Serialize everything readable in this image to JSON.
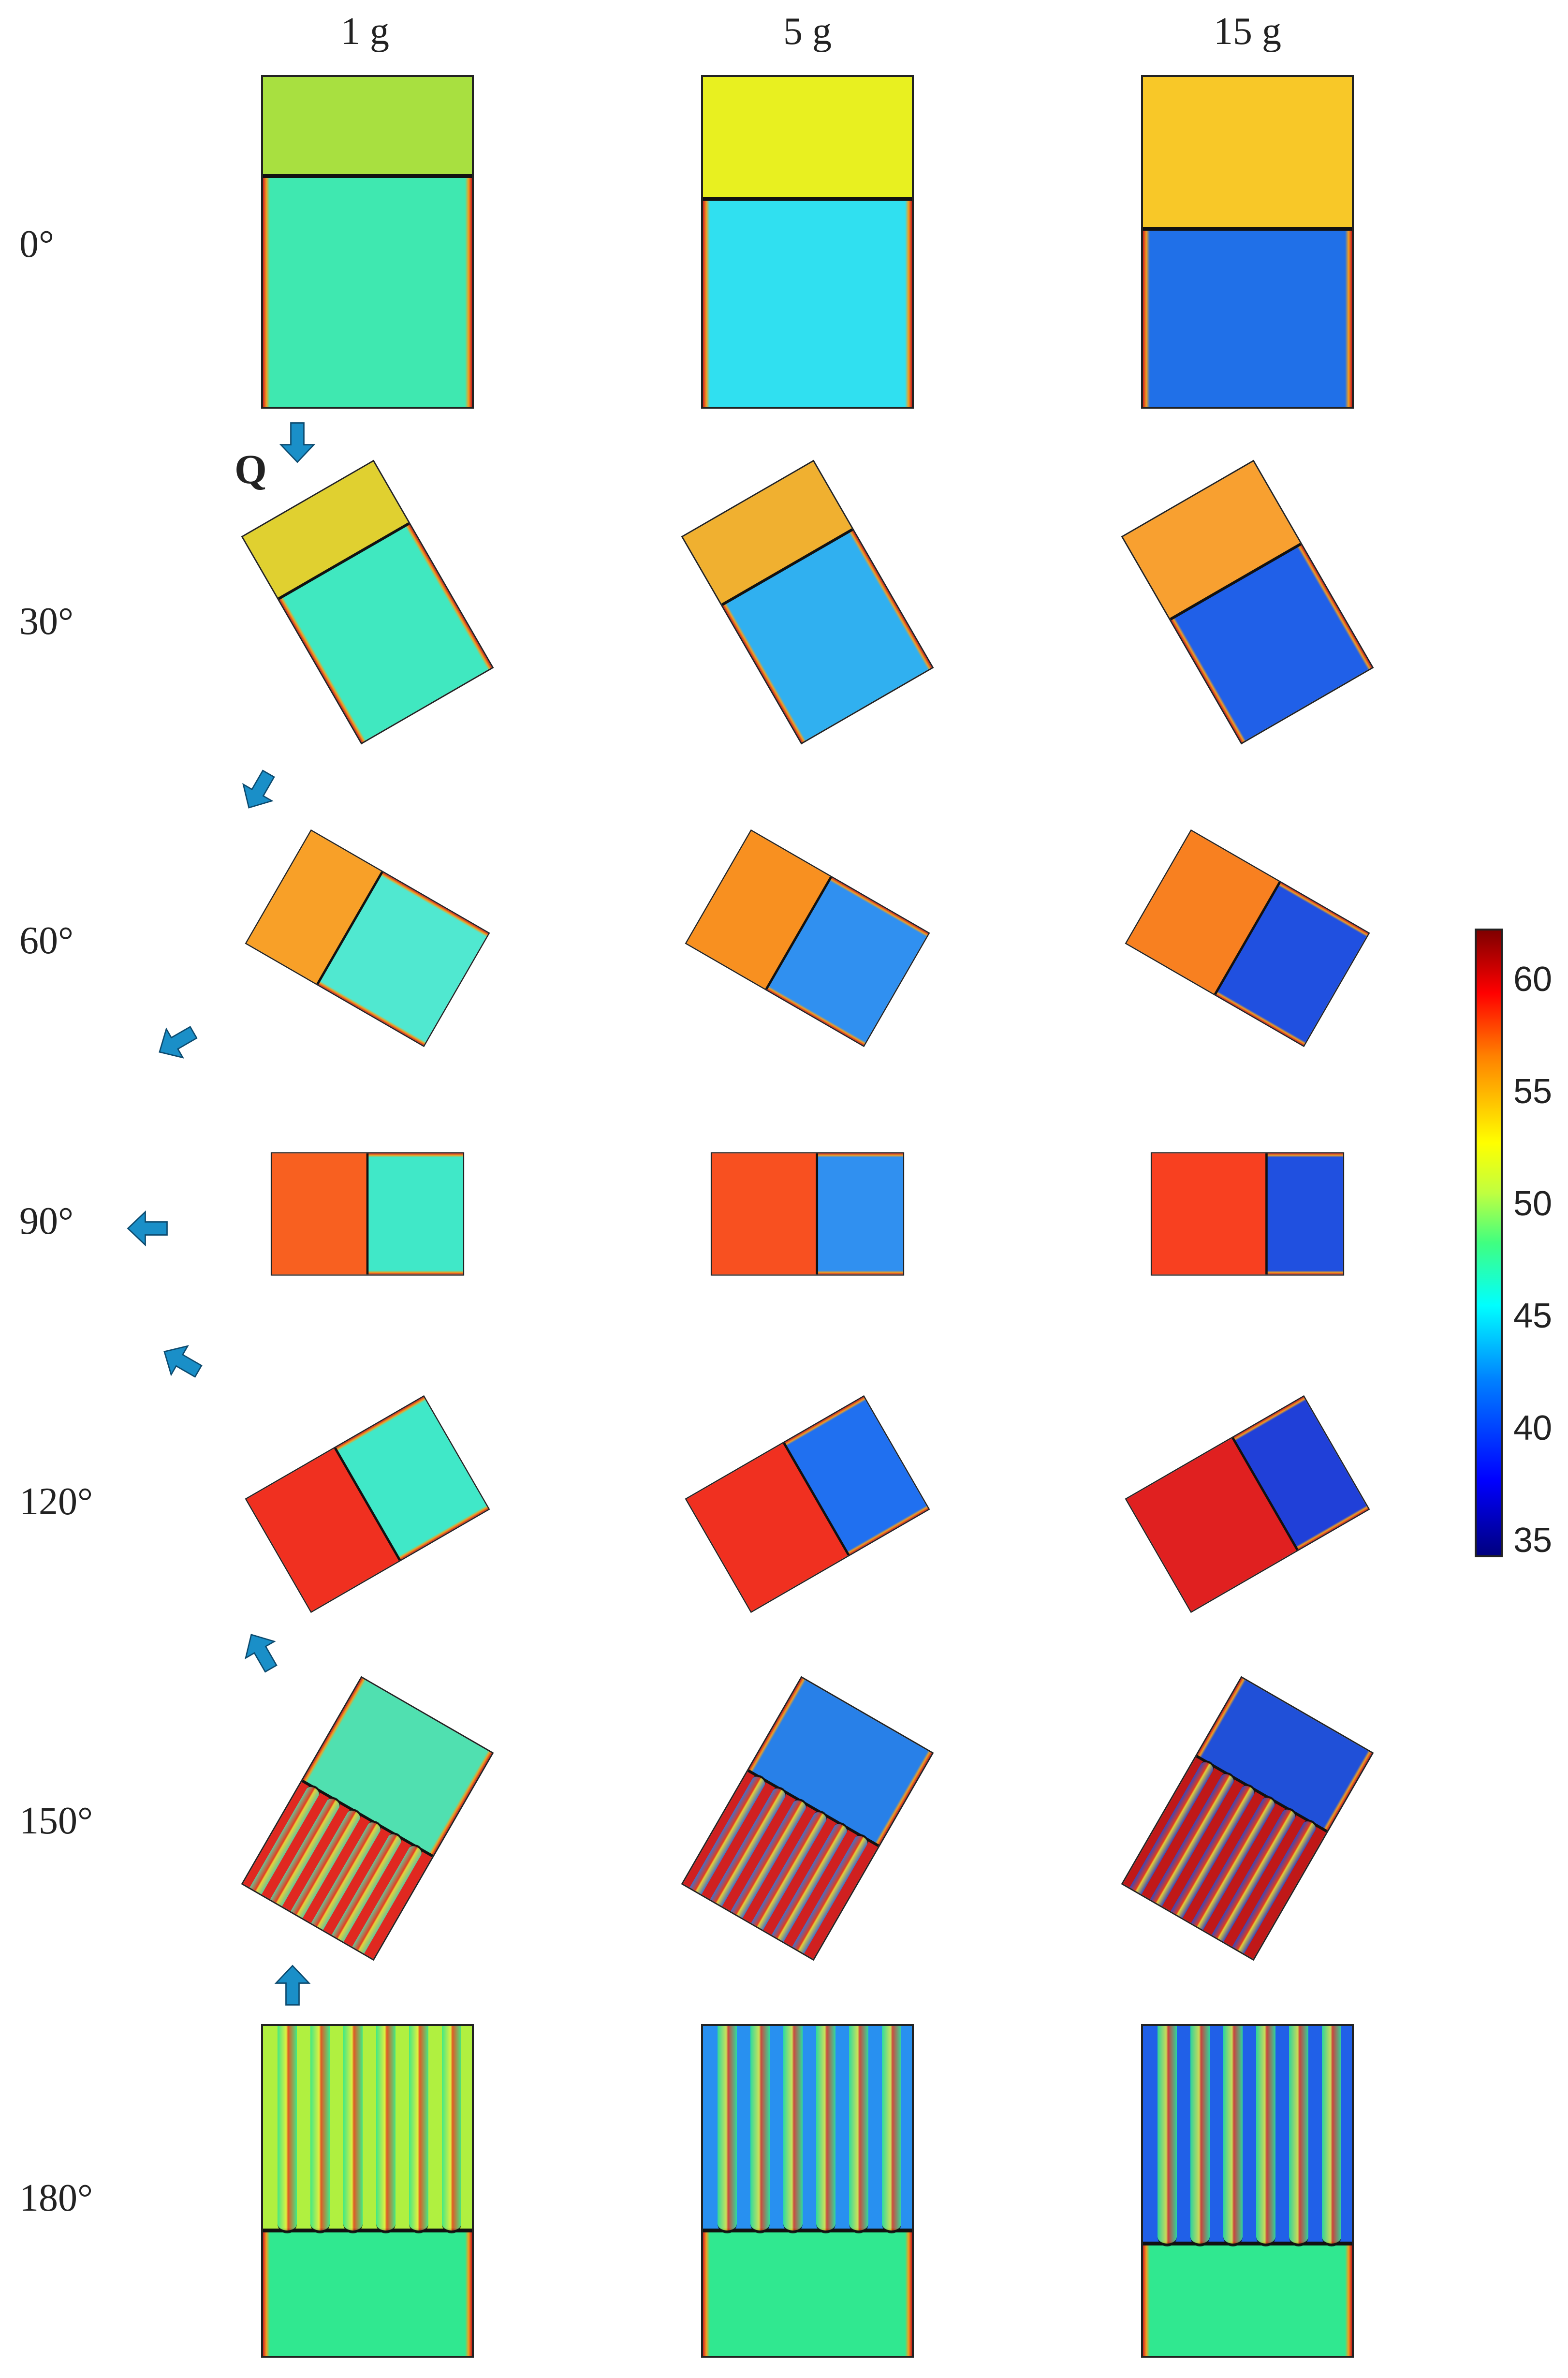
{
  "columns": [
    "1 g",
    "5 g",
    "15 g"
  ],
  "rows": [
    "0°",
    "30°",
    "60°",
    "90°",
    "120°",
    "150°",
    "180°"
  ],
  "flow_label": "Q",
  "colorbar": {
    "ticks": [
      "60",
      "55",
      "50",
      "45",
      "40",
      "35"
    ],
    "min": 34,
    "max": 62
  },
  "colors": {
    "arrow": "#1a8fc8",
    "interface": "#111111"
  },
  "panels": [
    {
      "row": "0°",
      "col": "1 g",
      "hot_color": "#a8e040",
      "cold_color": "#3fe8b0",
      "hot_fraction": 0.3
    },
    {
      "row": "0°",
      "col": "5 g",
      "hot_color": "#e8f020",
      "cold_color": "#30e0f0",
      "hot_fraction": 0.37
    },
    {
      "row": "0°",
      "col": "15 g",
      "hot_color": "#f8c828",
      "cold_color": "#2070e8",
      "hot_fraction": 0.46
    },
    {
      "row": "30°",
      "col": "1 g",
      "hot_color": "#e0d030",
      "cold_color": "#40e8c0",
      "hot_fraction": 0.3
    },
    {
      "row": "30°",
      "col": "5 g",
      "hot_color": "#f0b030",
      "cold_color": "#30b0f0",
      "hot_fraction": 0.33
    },
    {
      "row": "30°",
      "col": "15 g",
      "hot_color": "#f8a030",
      "cold_color": "#2060e8",
      "hot_fraction": 0.4
    },
    {
      "row": "60°",
      "col": "1 g",
      "hot_color": "#f8a028",
      "cold_color": "#50e8d0",
      "hot_fraction": 0.4
    },
    {
      "row": "60°",
      "col": "5 g",
      "hot_color": "#f89020",
      "cold_color": "#3090f0",
      "hot_fraction": 0.45
    },
    {
      "row": "60°",
      "col": "15 g",
      "hot_color": "#f88020",
      "cold_color": "#2050e0",
      "hot_fraction": 0.5
    },
    {
      "row": "90°",
      "col": "1 g",
      "hot_color": "#f86020",
      "cold_color": "#40e8c8",
      "hot_fraction": 0.5
    },
    {
      "row": "90°",
      "col": "5 g",
      "hot_color": "#f85020",
      "cold_color": "#3090f0",
      "hot_fraction": 0.55
    },
    {
      "row": "90°",
      "col": "15 g",
      "hot_color": "#f84020",
      "cold_color": "#2050e0",
      "hot_fraction": 0.6
    },
    {
      "row": "120°",
      "col": "1 g",
      "hot_color": "#f03020",
      "cold_color": "#40e8c8",
      "hot_fraction": 0.5
    },
    {
      "row": "120°",
      "col": "5 g",
      "hot_color": "#f03020",
      "cold_color": "#2070f0",
      "hot_fraction": 0.55
    },
    {
      "row": "120°",
      "col": "15 g",
      "hot_color": "#e02020",
      "cold_color": "#2040d8",
      "hot_fraction": 0.6
    },
    {
      "row": "150°",
      "col": "1 g",
      "hot_color": "#e02820",
      "cold_color": "#50e0b0",
      "hot_fraction": 0.5
    },
    {
      "row": "150°",
      "col": "5 g",
      "hot_color": "#d02020",
      "cold_color": "#2880e8",
      "hot_fraction": 0.55
    },
    {
      "row": "150°",
      "col": "15 g",
      "hot_color": "#c01818",
      "cold_color": "#2050d8",
      "hot_fraction": 0.62
    },
    {
      "row": "180°",
      "col": "1 g",
      "hot_color": "#b0f040",
      "cold_color": "#30e890",
      "hot_fraction": 0.62
    },
    {
      "row": "180°",
      "col": "5 g",
      "hot_color": "#2890f0",
      "cold_color": "#30e890",
      "hot_fraction": 0.62
    },
    {
      "row": "180°",
      "col": "15 g",
      "hot_color": "#2060e8",
      "cold_color": "#30e890",
      "hot_fraction": 0.66
    }
  ]
}
